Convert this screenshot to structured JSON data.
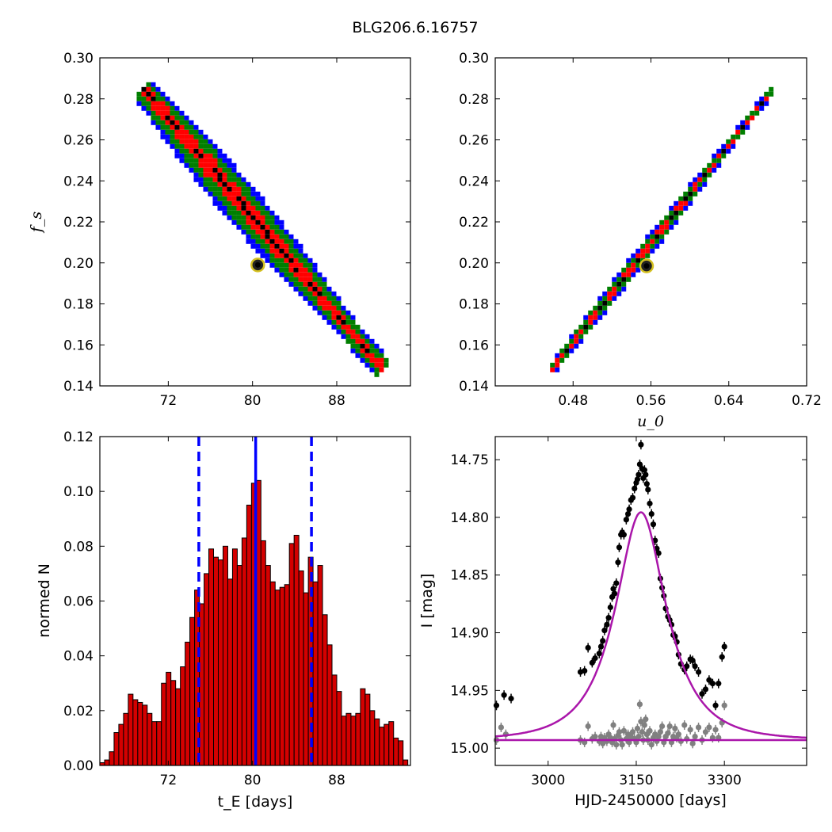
{
  "figure": {
    "title": "BLG206.6.16757"
  },
  "chart_data": [
    {
      "id": "tE_fs",
      "type": "heatmap",
      "title": "",
      "xlabel": "",
      "ylabel": "f_s",
      "xlim": [
        65.5,
        95.0
      ],
      "ylim": [
        0.14,
        0.3
      ],
      "xticks": [
        72,
        80,
        88
      ],
      "xtick_labels": [
        "72",
        "80",
        "88"
      ],
      "yticks": [
        0.14,
        0.16,
        0.18,
        0.2,
        0.22,
        0.24,
        0.26,
        0.28,
        0.3
      ],
      "ytick_labels": [
        "0.14",
        "0.16",
        "0.18",
        "0.20",
        "0.22",
        "0.24",
        "0.26",
        "0.28",
        "0.30"
      ],
      "band": {
        "start": [
          69.6,
          0.285
        ],
        "end": [
          92.4,
          0.148
        ],
        "color_levels": [
          "#0000ff",
          "#007f00",
          "#ff0000",
          "#000000"
        ],
        "half_widths": [
          1.9,
          1.45,
          0.7,
          0.2
        ]
      },
      "best_fit": {
        "x": 80.5,
        "y": 0.199,
        "color": "#d4c021"
      }
    },
    {
      "id": "u0_fs",
      "type": "heatmap",
      "title": "",
      "xlabel": "u_0",
      "ylabel": "",
      "xlim": [
        0.4,
        0.72
      ],
      "ylim": [
        0.14,
        0.3
      ],
      "xticks": [
        0.48,
        0.56,
        0.64,
        0.72
      ],
      "xtick_labels": [
        "0.48",
        "0.56",
        "0.64",
        "0.72"
      ],
      "yticks": [
        0.14,
        0.16,
        0.18,
        0.2,
        0.22,
        0.24,
        0.26,
        0.28,
        0.3
      ],
      "ytick_labels": [
        "0.14",
        "0.16",
        "0.18",
        "0.20",
        "0.22",
        "0.24",
        "0.26",
        "0.28",
        "0.30"
      ],
      "band": {
        "start": [
          0.458,
          0.148
        ],
        "end": [
          0.686,
          0.285
        ],
        "color_levels": [
          "#0000ff",
          "#007f00",
          "#ff0000",
          "#000000"
        ],
        "half_widths": [
          0.0075,
          0.0055,
          0.0025,
          0.0008
        ]
      },
      "best_fit": {
        "x": 0.5555,
        "y": 0.1985,
        "color": "#d4c021"
      }
    },
    {
      "id": "tE_hist",
      "type": "bar",
      "title": "",
      "xlabel": "t_E [days]",
      "ylabel": "normed N",
      "xlim": [
        65.5,
        95.0
      ],
      "ylim": [
        0.0,
        0.12
      ],
      "xticks": [
        72,
        80,
        88
      ],
      "xtick_labels": [
        "72",
        "80",
        "88"
      ],
      "yticks": [
        0.0,
        0.02,
        0.04,
        0.06,
        0.08,
        0.1,
        0.12
      ],
      "ytick_labels": [
        "0.00",
        "0.02",
        "0.04",
        "0.06",
        "0.08",
        "0.10",
        "0.12"
      ],
      "bin_start": 65.5,
      "bin_width": 0.45,
      "values": [
        0.001,
        0.002,
        0.005,
        0.012,
        0.015,
        0.019,
        0.026,
        0.024,
        0.023,
        0.022,
        0.019,
        0.016,
        0.016,
        0.03,
        0.034,
        0.031,
        0.028,
        0.036,
        0.045,
        0.054,
        0.064,
        0.059,
        0.07,
        0.079,
        0.076,
        0.075,
        0.08,
        0.068,
        0.079,
        0.073,
        0.083,
        0.095,
        0.103,
        0.104,
        0.082,
        0.073,
        0.067,
        0.064,
        0.065,
        0.066,
        0.081,
        0.084,
        0.071,
        0.063,
        0.076,
        0.067,
        0.073,
        0.055,
        0.044,
        0.033,
        0.027,
        0.018,
        0.019,
        0.018,
        0.019,
        0.028,
        0.026,
        0.02,
        0.017,
        0.014,
        0.015,
        0.016,
        0.01,
        0.009,
        0.002,
        0.001
      ],
      "bar_color": "#d40000",
      "vlines": [
        {
          "x": 80.3,
          "style": "solid",
          "color": "#0000ff"
        },
        {
          "x": 74.9,
          "style": "dashed",
          "color": "#0000ff"
        },
        {
          "x": 85.6,
          "style": "dashed",
          "color": "#0000ff"
        }
      ]
    },
    {
      "id": "lightcurve",
      "type": "scatter",
      "title": "",
      "xlabel": "HJD-2450000 [days]",
      "ylabel": "I [mag]",
      "xlim": [
        2910,
        3440
      ],
      "ylim": [
        15.015,
        14.73
      ],
      "xticks": [
        3000,
        3150,
        3300
      ],
      "xtick_labels": [
        "3000",
        "3150",
        "3300"
      ],
      "yticks": [
        14.75,
        14.8,
        14.85,
        14.9,
        14.95,
        15.0
      ],
      "ytick_labels": [
        "14.75",
        "14.80",
        "14.85",
        "14.90",
        "14.95",
        "15.00"
      ],
      "model": {
        "t0": 3158,
        "tE": 80.3,
        "u0": 0.5555,
        "fs": 0.199,
        "baseline": 14.993,
        "color": "#aa16aa"
      },
      "residual_level": 14.993,
      "series": [
        {
          "role": "data",
          "color": "#000000",
          "points": [
            [
              2912,
              14.963
            ],
            [
              2925,
              14.954
            ],
            [
              2937,
              14.957
            ],
            [
              3055,
              14.934
            ],
            [
              3062,
              14.933
            ],
            [
              3068,
              14.913
            ],
            [
              3075,
              14.926
            ],
            [
              3080,
              14.922
            ],
            [
              3087,
              14.918
            ],
            [
              3090,
              14.912
            ],
            [
              3093,
              14.907
            ],
            [
              3096,
              14.898
            ],
            [
              3100,
              14.893
            ],
            [
              3103,
              14.887
            ],
            [
              3106,
              14.878
            ],
            [
              3109,
              14.869
            ],
            [
              3111,
              14.862
            ],
            [
              3113,
              14.866
            ],
            [
              3116,
              14.857
            ],
            [
              3119,
              14.839
            ],
            [
              3121,
              14.826
            ],
            [
              3124,
              14.815
            ],
            [
              3126,
              14.813
            ],
            [
              3129,
              14.815
            ],
            [
              3133,
              14.802
            ],
            [
              3136,
              14.797
            ],
            [
              3138,
              14.793
            ],
            [
              3141,
              14.785
            ],
            [
              3144,
              14.783
            ],
            [
              3147,
              14.775
            ],
            [
              3150,
              14.77
            ],
            [
              3152,
              14.767
            ],
            [
              3154,
              14.763
            ],
            [
              3156,
              14.754
            ],
            [
              3158,
              14.737
            ],
            [
              3160,
              14.758
            ],
            [
              3162,
              14.766
            ],
            [
              3164,
              14.759
            ],
            [
              3166,
              14.763
            ],
            [
              3168,
              14.771
            ],
            [
              3170,
              14.776
            ],
            [
              3173,
              14.788
            ],
            [
              3176,
              14.797
            ],
            [
              3179,
              14.806
            ],
            [
              3182,
              14.82
            ],
            [
              3185,
              14.827
            ],
            [
              3188,
              14.831
            ],
            [
              3191,
              14.853
            ],
            [
              3194,
              14.861
            ],
            [
              3197,
              14.868
            ],
            [
              3200,
              14.879
            ],
            [
              3204,
              14.886
            ],
            [
              3207,
              14.889
            ],
            [
              3210,
              14.893
            ],
            [
              3213,
              14.902
            ],
            [
              3216,
              14.903
            ],
            [
              3219,
              14.908
            ],
            [
              3222,
              14.919
            ],
            [
              3226,
              14.927
            ],
            [
              3232,
              14.932
            ],
            [
              3236,
              14.929
            ],
            [
              3242,
              14.923
            ],
            [
              3246,
              14.924
            ],
            [
              3250,
              14.929
            ],
            [
              3256,
              14.934
            ],
            [
              3262,
              14.953
            ],
            [
              3268,
              14.949
            ],
            [
              3274,
              14.941
            ],
            [
              3280,
              14.944
            ],
            [
              3285,
              14.963
            ],
            [
              3290,
              14.944
            ],
            [
              3296,
              14.921
            ],
            [
              3300,
              14.912
            ]
          ]
        },
        {
          "role": "residuals",
          "color": "#808080",
          "points": [
            [
              2912,
              14.993
            ],
            [
              2920,
              14.982
            ],
            [
              2928,
              14.988
            ],
            [
              3055,
              14.993
            ],
            [
              3062,
              14.995
            ],
            [
              3068,
              14.981
            ],
            [
              3075,
              14.992
            ],
            [
              3080,
              14.99
            ],
            [
              3087,
              14.994
            ],
            [
              3090,
              14.99
            ],
            [
              3093,
              14.996
            ],
            [
              3096,
              14.991
            ],
            [
              3100,
              14.994
            ],
            [
              3103,
              14.988
            ],
            [
              3106,
              14.991
            ],
            [
              3109,
              14.995
            ],
            [
              3111,
              14.98
            ],
            [
              3113,
              14.992
            ],
            [
              3116,
              14.997
            ],
            [
              3119,
              14.989
            ],
            [
              3121,
              14.986
            ],
            [
              3124,
              14.993
            ],
            [
              3126,
              14.997
            ],
            [
              3129,
              14.985
            ],
            [
              3133,
              14.992
            ],
            [
              3136,
              14.988
            ],
            [
              3138,
              14.995
            ],
            [
              3141,
              14.99
            ],
            [
              3144,
              14.986
            ],
            [
              3147,
              14.992
            ],
            [
              3150,
              14.995
            ],
            [
              3152,
              14.983
            ],
            [
              3154,
              14.99
            ],
            [
              3156,
              14.962
            ],
            [
              3158,
              14.977
            ],
            [
              3160,
              14.986
            ],
            [
              3162,
              14.993
            ],
            [
              3164,
              14.98
            ],
            [
              3166,
              14.975
            ],
            [
              3168,
              14.988
            ],
            [
              3170,
              14.993
            ],
            [
              3173,
              14.985
            ],
            [
              3176,
              14.997
            ],
            [
              3179,
              14.991
            ],
            [
              3182,
              14.988
            ],
            [
              3185,
              14.994
            ],
            [
              3188,
              14.99
            ],
            [
              3191,
              14.986
            ],
            [
              3194,
              14.981
            ],
            [
              3197,
              14.995
            ],
            [
              3200,
              14.99
            ],
            [
              3204,
              14.987
            ],
            [
              3207,
              14.981
            ],
            [
              3210,
              14.995
            ],
            [
              3213,
              14.99
            ],
            [
              3216,
              14.983
            ],
            [
              3219,
              14.991
            ],
            [
              3222,
              14.988
            ],
            [
              3226,
              14.994
            ],
            [
              3232,
              14.98
            ],
            [
              3236,
              14.992
            ],
            [
              3242,
              14.984
            ],
            [
              3246,
              14.996
            ],
            [
              3250,
              14.99
            ],
            [
              3256,
              14.982
            ],
            [
              3262,
              14.993
            ],
            [
              3268,
              14.986
            ],
            [
              3274,
              14.982
            ],
            [
              3280,
              14.991
            ],
            [
              3285,
              14.984
            ],
            [
              3290,
              14.991
            ],
            [
              3296,
              14.978
            ],
            [
              3300,
              14.963
            ]
          ]
        }
      ]
    }
  ]
}
